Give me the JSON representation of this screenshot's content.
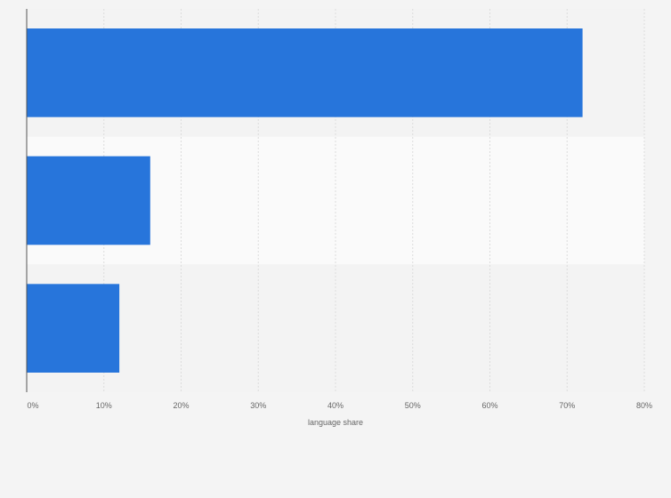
{
  "chart_data": {
    "type": "bar",
    "orientation": "horizontal",
    "categories": [
      "",
      "",
      ""
    ],
    "values": [
      72,
      16,
      12
    ],
    "xlabel": "language share",
    "ylabel": "",
    "xlim": [
      0,
      80
    ],
    "tick_values": [
      0,
      10,
      20,
      30,
      40,
      50,
      60,
      70,
      80
    ],
    "tick_labels": [
      "0%",
      "10%",
      "20%",
      "30%",
      "40%",
      "50%",
      "60%",
      "70%",
      "80%"
    ],
    "grid": true,
    "legend": "none"
  },
  "colors": {
    "bar": "#2775db",
    "background": "#f4f4f4",
    "band_light": "#fafafa",
    "band_dark": "#f3f3f3",
    "gridline": "#dcdcdc",
    "axis": "#555555",
    "text": "#666666"
  }
}
